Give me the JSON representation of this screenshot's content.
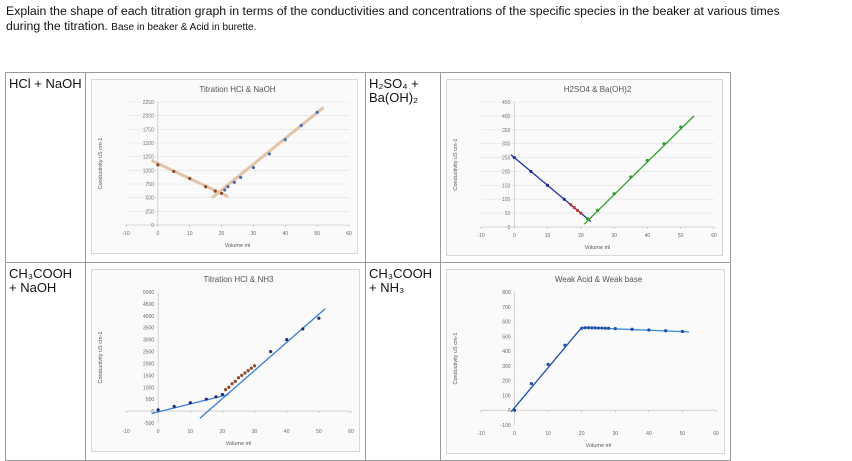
{
  "header": {
    "question_line1": "Explain the shape of each titration graph in terms of the conductivities and concentrations of the specific species in the beaker at various times",
    "question_line2": "during the titration.",
    "note": "Base in beaker & Acid in burette."
  },
  "table": {
    "rows": [
      [
        "HCl + NaOH",
        {
          "type": "scatter",
          "title": "Titration HCl & NaOH",
          "xlabel": "Volume ml",
          "ylabel": "Conductivity uS cm-1",
          "xlim": [
            -10,
            60
          ],
          "ylim": [
            0,
            2250
          ],
          "xticks": [
            -10,
            0,
            10,
            20,
            30,
            40,
            50,
            60
          ],
          "yticks": [
            0,
            250,
            500,
            750,
            1000,
            1250,
            1500,
            1750,
            2000,
            2250
          ],
          "grid": true,
          "series": [
            {
              "mode": "line",
              "color": "#e2c4a8",
              "x": [
                -2,
                22
              ],
              "values": [
                1180,
                520
              ]
            },
            {
              "mode": "line",
              "color": "#e2c4a8",
              "x": [
                17,
                52
              ],
              "values": [
                500,
                2150
              ]
            },
            {
              "mode": "markers",
              "color": "#8b4a2b",
              "x": [
                0,
                5,
                10,
                15,
                18,
                20
              ],
              "values": [
                1100,
                980,
                850,
                700,
                620,
                580
              ]
            },
            {
              "mode": "markers",
              "color": "#4f6fb0",
              "x": [
                21,
                22,
                24,
                26,
                30,
                35,
                40,
                45,
                50
              ],
              "values": [
                640,
                700,
                780,
                870,
                1050,
                1300,
                1560,
                1820,
                2060
              ]
            }
          ]
        }
      ],
      [
        "H₂SO₄ + Ba(OH)₂",
        {
          "type": "scatter",
          "title": "H2SO4 & Ba(OH)2",
          "xlabel": "Volume ml",
          "ylabel": "Conductivity uS cm-1",
          "xlim": [
            -10,
            60
          ],
          "ylim": [
            0,
            450
          ],
          "xticks": [
            -10,
            0,
            10,
            20,
            30,
            40,
            50,
            60
          ],
          "yticks": [
            0,
            50,
            100,
            150,
            200,
            250,
            300,
            350,
            400,
            450
          ],
          "grid": true,
          "series": [
            {
              "mode": "line",
              "color": "#1f2f9e",
              "x": [
                -1,
                23
              ],
              "values": [
                260,
                20
              ]
            },
            {
              "mode": "line",
              "color": "#2e9e2e",
              "x": [
                21,
                54
              ],
              "values": [
                10,
                400
              ]
            },
            {
              "mode": "markers",
              "color": "#1f2f9e",
              "x": [
                0,
                5,
                10,
                15
              ],
              "values": [
                250,
                200,
                150,
                100
              ]
            },
            {
              "mode": "markers",
              "color": "#c0392b",
              "x": [
                17,
                18,
                19,
                20
              ],
              "values": [
                80,
                70,
                60,
                50
              ]
            },
            {
              "mode": "markers",
              "color": "#2e9e2e",
              "x": [
                22,
                25,
                30,
                35,
                40,
                45,
                50
              ],
              "values": [
                30,
                60,
                120,
                180,
                240,
                300,
                360
              ]
            }
          ]
        }
      ],
      [
        "CH₃COOH + NaOH",
        {
          "type": "scatter",
          "title": "Titration HCl & NH3",
          "xlabel": "Volume ml",
          "ylabel": "Conductivity uS cm-1",
          "xlim": [
            -10,
            60
          ],
          "ylim": [
            -500,
            5000
          ],
          "xticks": [
            -10,
            0,
            10,
            20,
            30,
            40,
            50,
            60
          ],
          "yticks": [
            -500,
            0,
            500,
            1000,
            1500,
            2000,
            2500,
            3000,
            3500,
            4000,
            4500,
            5000
          ],
          "grid": false,
          "series": [
            {
              "mode": "line",
              "color": "#3b7dd8",
              "x": [
                -2,
                22
              ],
              "values": [
                -100,
                700
              ]
            },
            {
              "mode": "line",
              "color": "#3b7dd8",
              "x": [
                13,
                52
              ],
              "values": [
                -300,
                4300
              ]
            },
            {
              "mode": "markers",
              "color": "#1f2f6e",
              "x": [
                0,
                5,
                10,
                15,
                18,
                20
              ],
              "values": [
                50,
                200,
                350,
                500,
                600,
                700
              ]
            },
            {
              "mode": "markers",
              "color": "#8b4a2b",
              "x": [
                21,
                22,
                23,
                24,
                25,
                26,
                27,
                28,
                29,
                30
              ],
              "values": [
                900,
                1000,
                1150,
                1250,
                1400,
                1500,
                1600,
                1700,
                1800,
                1900
              ]
            },
            {
              "mode": "markers",
              "color": "#1f2f6e",
              "x": [
                35,
                40,
                45,
                50
              ],
              "values": [
                2500,
                3000,
                3450,
                3900
              ]
            }
          ]
        }
      ],
      [
        "CH₃COOH + NH₃",
        {
          "type": "scatter",
          "title": "Weak Acid & Weak base",
          "xlabel": "Volume ml",
          "ylabel": "Conductivity uS cm-1",
          "xlim": [
            -10,
            60
          ],
          "ylim": [
            -100,
            800
          ],
          "xticks": [
            -10,
            0,
            10,
            20,
            30,
            40,
            50,
            60
          ],
          "yticks": [
            -100,
            0,
            100,
            200,
            300,
            400,
            500,
            600,
            700,
            800
          ],
          "grid": false,
          "series": [
            {
              "mode": "line",
              "color": "#1f4fa8",
              "x": [
                -1,
                20
              ],
              "values": [
                -10,
                560
              ]
            },
            {
              "mode": "line",
              "color": "#3b8fd8",
              "x": [
                20,
                52
              ],
              "values": [
                560,
                530
              ]
            },
            {
              "mode": "markers",
              "color": "#1f4fa8",
              "x": [
                0,
                5,
                10,
                15,
                20,
                21,
                22,
                23,
                24,
                25,
                26,
                27,
                28,
                30,
                35,
                40,
                45,
                50
              ],
              "values": [
                0,
                180,
                310,
                440,
                555,
                558,
                558,
                557,
                557,
                556,
                556,
                555,
                555,
                552,
                548,
                543,
                538,
                533
              ]
            }
          ]
        }
      ]
    ]
  }
}
